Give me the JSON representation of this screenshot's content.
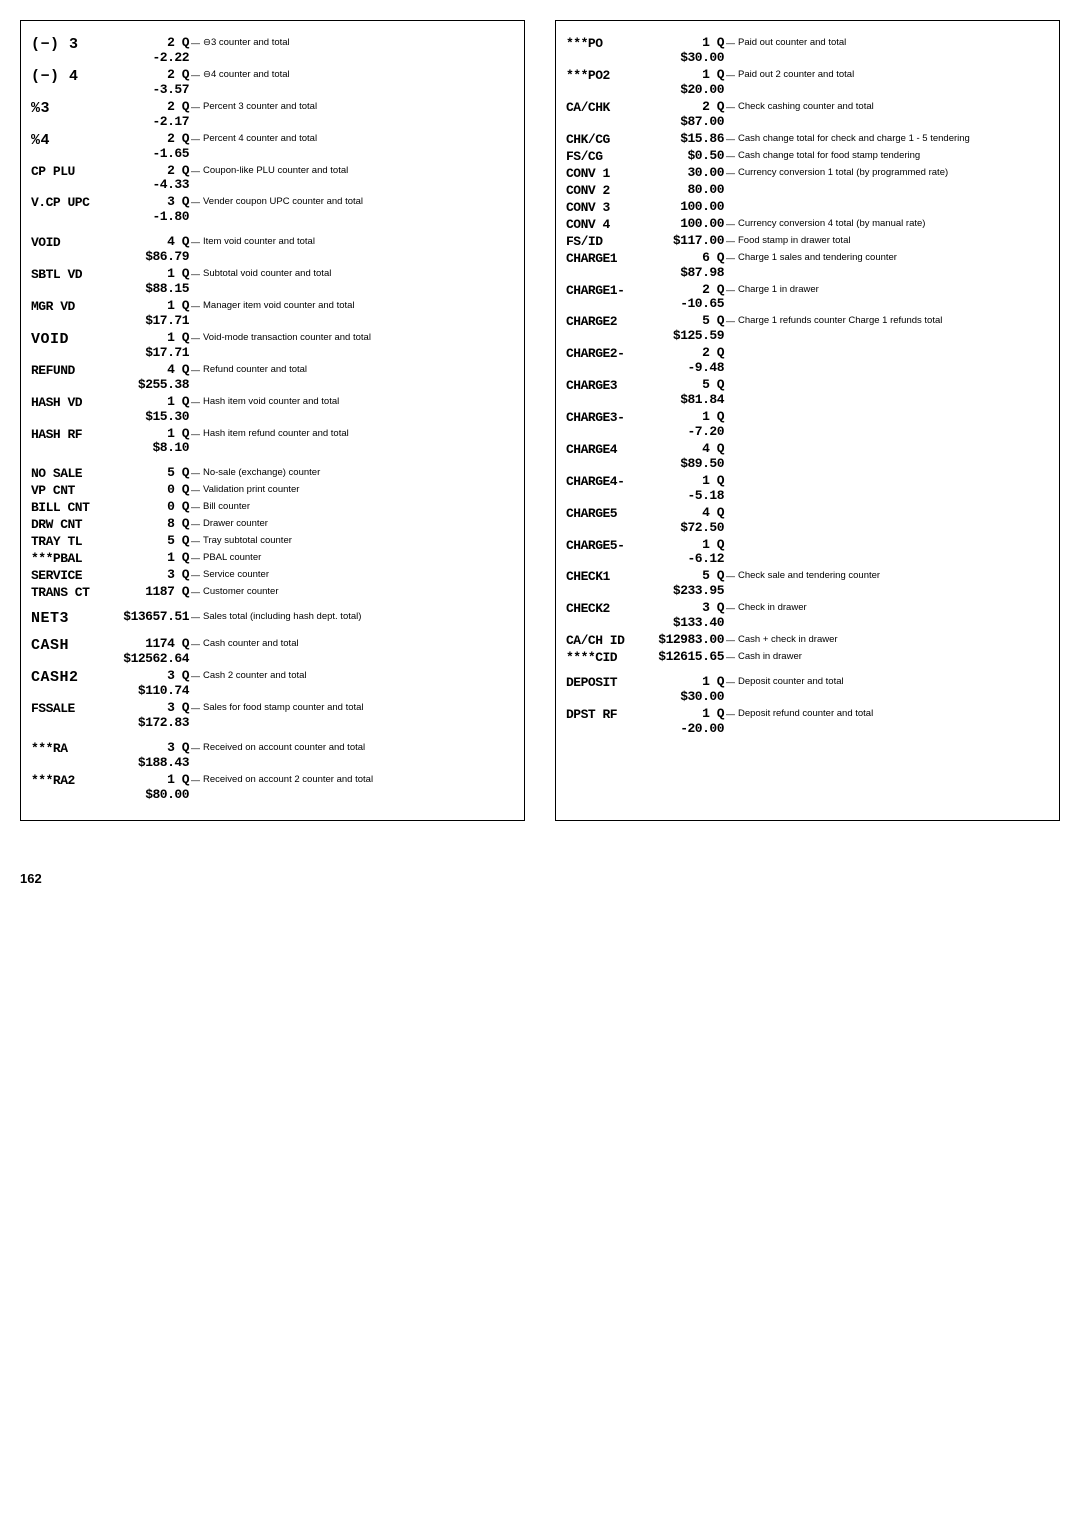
{
  "pageNumber": "162",
  "left": {
    "rows": [
      {
        "label": "(−) 3",
        "big": true,
        "vals": [
          "2 Q",
          "-2.22"
        ],
        "desc": "⊖3 counter and total"
      },
      {
        "label": "(−) 4",
        "big": true,
        "vals": [
          "2 Q",
          "-3.57"
        ],
        "desc": "⊖4 counter and total"
      },
      {
        "label": "%3",
        "big": true,
        "vals": [
          "2 Q",
          "-2.17"
        ],
        "desc": "Percent 3 counter and total"
      },
      {
        "label": "%4",
        "big": true,
        "vals": [
          "2 Q",
          "-1.65"
        ],
        "desc": "Percent 4 counter and total"
      },
      {
        "label": "CP PLU",
        "vals": [
          "2 Q",
          "-4.33"
        ],
        "desc": "Coupon-like PLU counter and total"
      },
      {
        "label": "V.CP UPC",
        "vals": [
          "3 Q",
          "-1.80"
        ],
        "desc": "Vender coupon UPC counter and total"
      },
      {
        "spacer": true
      },
      {
        "label": "VOID",
        "vals": [
          "4 Q",
          "$86.79"
        ],
        "desc": "Item void counter and total"
      },
      {
        "label": "SBTL VD",
        "vals": [
          "1 Q",
          "$88.15"
        ],
        "desc": "Subtotal void counter and total"
      },
      {
        "label": "MGR VD",
        "vals": [
          "1 Q",
          "$17.71"
        ],
        "desc": "Manager item void counter and total"
      },
      {
        "label": "VOID",
        "big": true,
        "vals": [
          "1 Q",
          "$17.71"
        ],
        "desc": "Void-mode transaction counter and total"
      },
      {
        "label": "REFUND",
        "vals": [
          "4 Q",
          "$255.38"
        ],
        "desc": "Refund counter and total"
      },
      {
        "label": "HASH VD",
        "vals": [
          "1 Q",
          "$15.30"
        ],
        "desc": "Hash item void counter and total"
      },
      {
        "label": "HASH RF",
        "vals": [
          "1 Q",
          "$8.10"
        ],
        "desc": "Hash item refund counter and total"
      },
      {
        "spacer": true
      },
      {
        "label": "NO SALE",
        "vals": [
          "5 Q"
        ],
        "desc": "No-sale (exchange) counter"
      },
      {
        "label": "VP CNT",
        "vals": [
          "0 Q"
        ],
        "desc": "Validation print counter"
      },
      {
        "label": "BILL CNT",
        "vals": [
          "0 Q"
        ],
        "desc": "Bill counter"
      },
      {
        "label": "DRW CNT",
        "vals": [
          "8 Q"
        ],
        "desc": "Drawer counter"
      },
      {
        "label": "TRAY TL",
        "vals": [
          "5 Q"
        ],
        "desc": "Tray subtotal counter"
      },
      {
        "label": "***PBAL",
        "vals": [
          "1 Q"
        ],
        "desc": "PBAL counter"
      },
      {
        "label": "SERVICE",
        "vals": [
          "3 Q"
        ],
        "desc": "Service counter"
      },
      {
        "label": "TRANS CT",
        "vals": [
          "1187 Q"
        ],
        "desc": "Customer counter"
      },
      {
        "spacer": true
      },
      {
        "label": "NET3",
        "big": true,
        "vals": [
          "$13657.51"
        ],
        "desc": "Sales total (including hash dept. total)"
      },
      {
        "spacer": true
      },
      {
        "label": "CASH",
        "big": true,
        "vals": [
          "1174 Q",
          "$12562.64"
        ],
        "desc": "Cash counter and total"
      },
      {
        "label": "CASH2",
        "big": true,
        "vals": [
          "3 Q",
          "$110.74"
        ],
        "desc": "Cash 2 counter and total"
      },
      {
        "label": "FSSALE",
        "vals": [
          "3 Q",
          "$172.83"
        ],
        "desc": "Sales for food stamp counter and total"
      },
      {
        "spacer": true
      },
      {
        "label": "***RA",
        "vals": [
          "3 Q",
          "$188.43"
        ],
        "desc": "Received on account counter and total"
      },
      {
        "label": "***RA2",
        "vals": [
          "1 Q",
          "$80.00"
        ],
        "desc": "Received on account 2 counter and total"
      }
    ]
  },
  "right": {
    "rows": [
      {
        "label": "***PO",
        "vals": [
          "1 Q",
          "$30.00"
        ],
        "desc": "Paid out counter and total"
      },
      {
        "label": "***PO2",
        "vals": [
          "1 Q",
          "$20.00"
        ],
        "desc": "Paid out 2 counter and total"
      },
      {
        "label": "CA/CHK",
        "vals": [
          "2 Q",
          "$87.00"
        ],
        "desc": "Check cashing counter and total"
      },
      {
        "label": "CHK/CG",
        "vals": [
          "$15.86"
        ],
        "desc": "Cash change total for check and charge 1 - 5 tendering"
      },
      {
        "label": "FS/CG",
        "vals": [
          "$0.50"
        ],
        "desc": "Cash change total for food stamp tendering"
      },
      {
        "label": "CONV 1",
        "vals": [
          "30.00"
        ],
        "desc": "Currency conversion 1 total (by programmed rate)"
      },
      {
        "label": "CONV 2",
        "vals": [
          "80.00"
        ],
        "desc": ""
      },
      {
        "label": "CONV 3",
        "vals": [
          "100.00"
        ],
        "desc": ""
      },
      {
        "label": "CONV 4",
        "vals": [
          "100.00"
        ],
        "desc": "Currency conversion 4 total (by manual rate)"
      },
      {
        "label": "FS/ID",
        "vals": [
          "$117.00"
        ],
        "desc": "Food stamp in drawer total"
      },
      {
        "label": "CHARGE1",
        "vals": [
          "6 Q",
          "$87.98"
        ],
        "desc": "Charge 1 sales and tendering counter"
      },
      {
        "label": "CHARGE1-",
        "vals": [
          "2 Q",
          "-10.65"
        ],
        "desc": "Charge 1 in drawer"
      },
      {
        "label": "CHARGE2",
        "vals": [
          "5 Q",
          "$125.59"
        ],
        "desc": "Charge 1 refunds counter\nCharge 1 refunds total"
      },
      {
        "label": "CHARGE2-",
        "vals": [
          "2 Q",
          "-9.48"
        ],
        "desc": ""
      },
      {
        "label": "CHARGE3",
        "vals": [
          "5 Q",
          "$81.84"
        ],
        "desc": ""
      },
      {
        "label": "CHARGE3-",
        "vals": [
          "1 Q",
          "-7.20"
        ],
        "desc": ""
      },
      {
        "label": "CHARGE4",
        "vals": [
          "4 Q",
          "$89.50"
        ],
        "desc": ""
      },
      {
        "label": "CHARGE4-",
        "vals": [
          "1 Q",
          "-5.18"
        ],
        "desc": ""
      },
      {
        "label": "CHARGE5",
        "vals": [
          "4 Q",
          "$72.50"
        ],
        "desc": ""
      },
      {
        "label": "CHARGE5-",
        "vals": [
          "1 Q",
          "-6.12"
        ],
        "desc": ""
      },
      {
        "label": "CHECK1",
        "vals": [
          "5 Q",
          "$233.95"
        ],
        "desc": "Check sale and tendering counter"
      },
      {
        "label": "CHECK2",
        "vals": [
          "3 Q",
          "$133.40"
        ],
        "desc": "Check in drawer"
      },
      {
        "label": "CA/CH ID",
        "vals": [
          "$12983.00"
        ],
        "desc": "Cash + check in drawer"
      },
      {
        "label": "****CID",
        "vals": [
          "$12615.65"
        ],
        "desc": "Cash in drawer"
      },
      {
        "spacer": true
      },
      {
        "label": "DEPOSIT",
        "vals": [
          "1 Q",
          "$30.00"
        ],
        "desc": "Deposit counter and total"
      },
      {
        "label": "DPST RF",
        "vals": [
          "1 Q",
          "-20.00"
        ],
        "desc": "Deposit refund counter and total"
      }
    ]
  }
}
